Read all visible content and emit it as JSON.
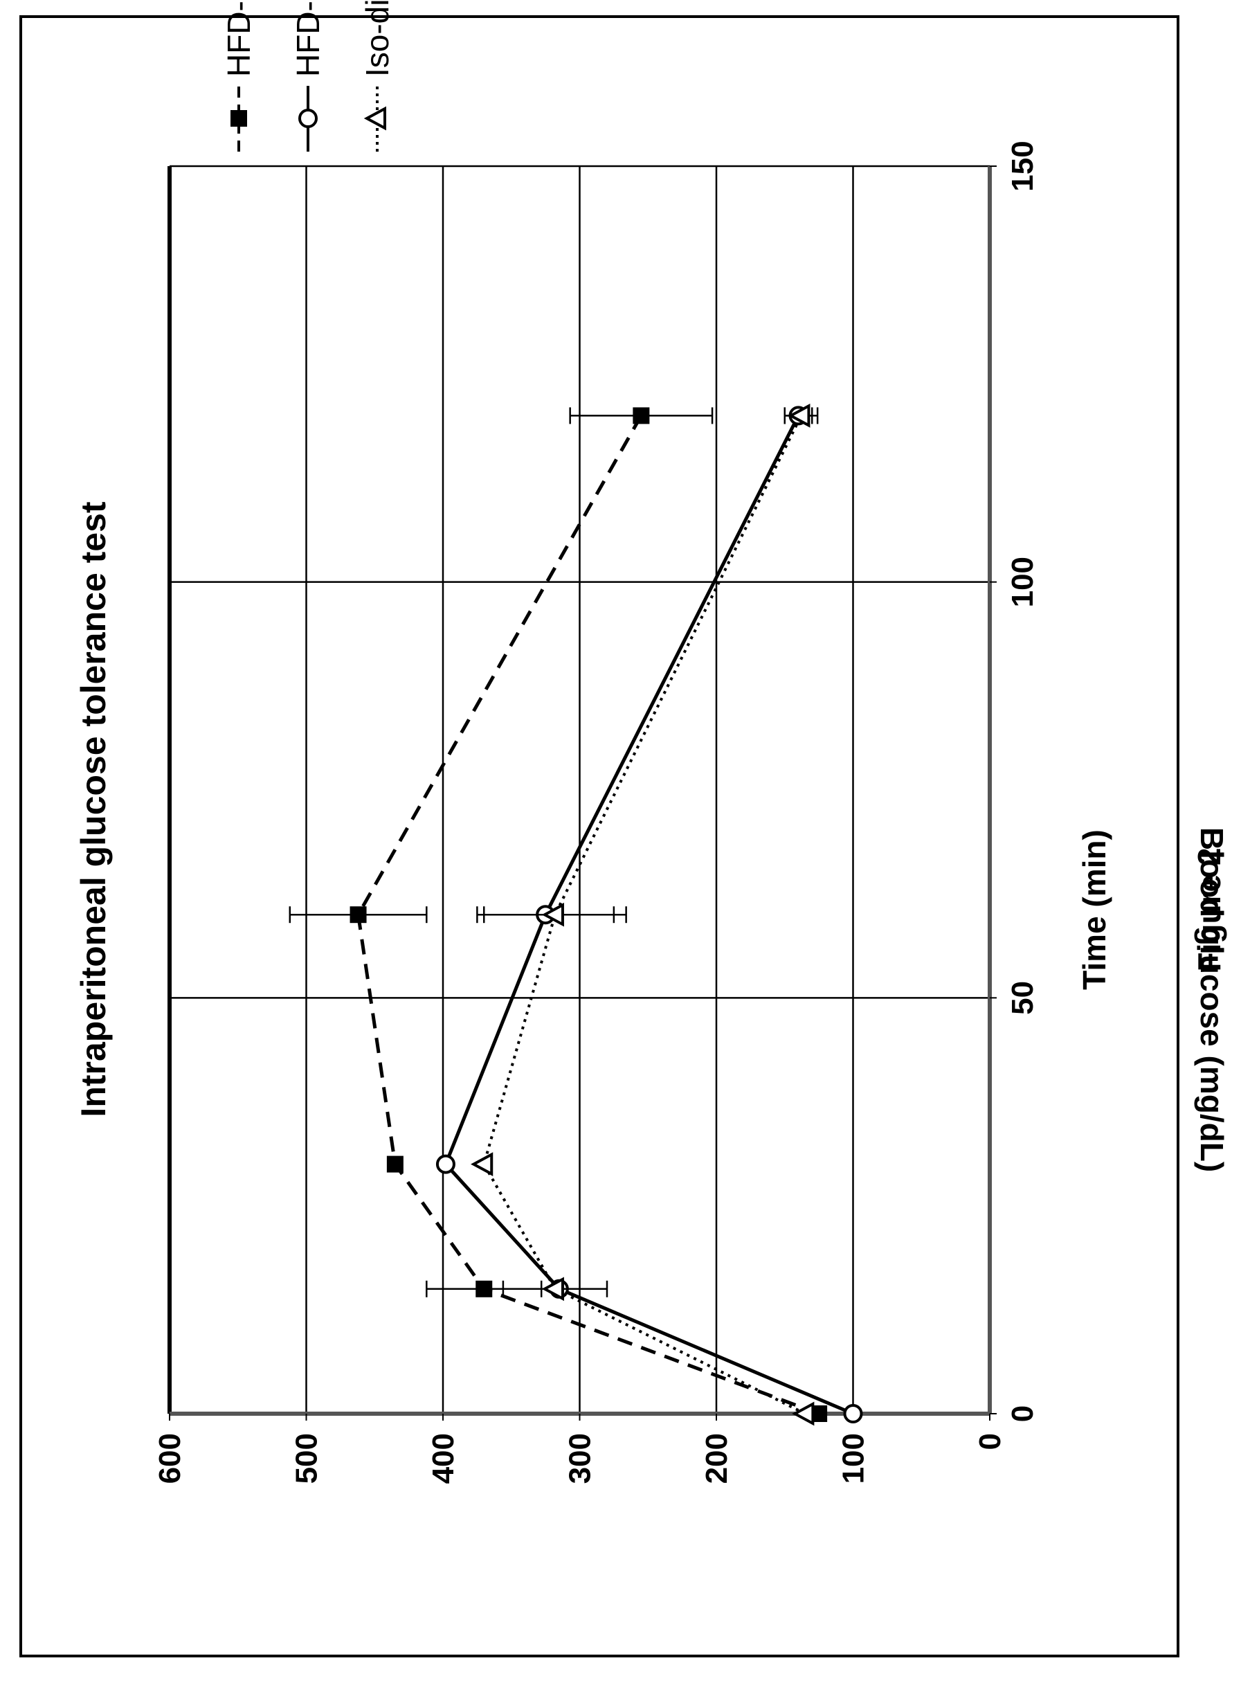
{
  "figure_label": "Figure 2",
  "chart_data": {
    "type": "line",
    "title": "Intraperitoneal glucose tolerance test",
    "xlabel": "Time (min)",
    "ylabel": "Blood glucose (mg/dL)",
    "xlim": [
      0,
      150
    ],
    "ylim": [
      0,
      600
    ],
    "x_ticks": [
      0,
      50,
      100,
      150
    ],
    "y_ticks": [
      0,
      100,
      200,
      300,
      400,
      500,
      600
    ],
    "grid": true,
    "legend_position": "right",
    "series": [
      {
        "name": "HFD-control",
        "marker": "square",
        "line_style": "dashed",
        "x": [
          0,
          15,
          30,
          60,
          120
        ],
        "y": [
          125,
          370,
          435,
          462,
          255
        ],
        "err": [
          0,
          42,
          0,
          50,
          52
        ]
      },
      {
        "name": "HFD-mAb",
        "marker": "circle",
        "line_style": "solid",
        "x": [
          0,
          15,
          30,
          60,
          120
        ],
        "y": [
          100,
          315,
          398,
          325,
          140
        ],
        "err": [
          0,
          0,
          0,
          50,
          10
        ]
      },
      {
        "name": "Iso-diet",
        "marker": "triangle",
        "line_style": "dotted",
        "x": [
          0,
          15,
          30,
          60,
          120
        ],
        "y": [
          135,
          318,
          370,
          318,
          138
        ],
        "err": [
          0,
          38,
          0,
          52,
          12
        ]
      }
    ]
  }
}
